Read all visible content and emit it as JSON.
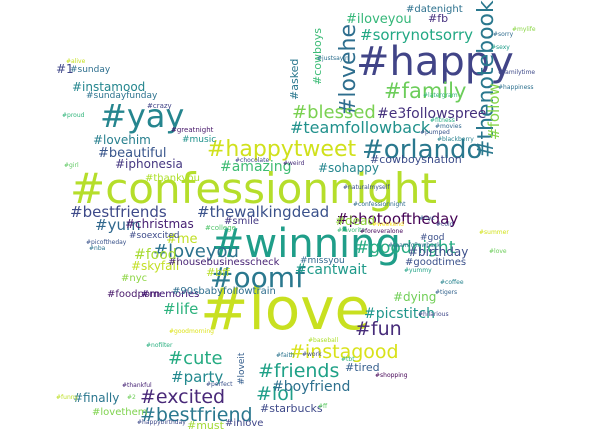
{
  "words": [
    {
      "text": "#confessionnight",
      "color": "#b5de2b"
    },
    {
      "text": "#winning",
      "color": "#1f9e89"
    },
    {
      "text": "#love",
      "color": "#c8e020"
    },
    {
      "text": "#happy",
      "color": "#414487"
    },
    {
      "text": "#oomf",
      "color": "#2a788e"
    },
    {
      "text": "#yay",
      "color": "#25858e"
    },
    {
      "text": "#orlando",
      "color": "#2a788e"
    },
    {
      "text": "#happytweet",
      "color": "#d0e11c"
    },
    {
      "text": "#family",
      "color": "#6ccd5a"
    },
    {
      "text": "#lovehe",
      "color": "#2e6e8e"
    },
    {
      "text": "#thenotebook",
      "color": "#2a788e"
    },
    {
      "text": "#blessed",
      "color": "#7ad151"
    },
    {
      "text": "#excited",
      "color": "#482878"
    },
    {
      "text": "#lol",
      "color": "#1f9e89"
    },
    {
      "text": "#friends",
      "color": "#1fa187"
    },
    {
      "text": "#bestfriend",
      "color": "#2a788e"
    },
    {
      "text": "#instagood",
      "color": "#d8e219"
    },
    {
      "text": "#fun",
      "color": "#472c7a"
    },
    {
      "text": "#cute",
      "color": "#25ab82"
    },
    {
      "text": "#loveyou",
      "color": "#2c728e"
    },
    {
      "text": "#goodnight",
      "color": "#25ab82"
    },
    {
      "text": "#teamfollowback",
      "color": "#21918c"
    },
    {
      "text": "#sorrynotsorry",
      "color": "#22a884"
    },
    {
      "text": "#bestfriends",
      "color": "#3e4a89"
    },
    {
      "text": "#thewalkingdead",
      "color": "#3b528b"
    },
    {
      "text": "#photooftheday",
      "color": "#440154"
    },
    {
      "text": "#amazing",
      "color": "#3fbc73"
    },
    {
      "text": "#iloveyou",
      "color": "#35b779"
    },
    {
      "text": "#e3followspree",
      "color": "#46327e"
    },
    {
      "text": "#follow",
      "color": "#86d549"
    },
    {
      "text": "#yum",
      "color": "#31688e"
    },
    {
      "text": "#party",
      "color": "#23898e"
    },
    {
      "text": "#cantwait",
      "color": "#1f9a8a"
    },
    {
      "text": "#picstitch",
      "color": "#1f968b"
    },
    {
      "text": "#food",
      "color": "#a8db34"
    },
    {
      "text": "#beautiful",
      "color": "#39568c"
    },
    {
      "text": "#life",
      "color": "#2db27d"
    },
    {
      "text": "#boyfriend",
      "color": "#2d708e"
    },
    {
      "text": "#lovehim",
      "color": "#277f8e"
    },
    {
      "text": "#instamood",
      "color": "#24868e"
    },
    {
      "text": "#christmas",
      "color": "#482173"
    },
    {
      "text": "#sohappy",
      "color": "#24868e"
    },
    {
      "text": "#cowboysnation",
      "color": "#3d4d8a"
    },
    {
      "text": "#finally",
      "color": "#2a768e"
    },
    {
      "text": "#birthday",
      "color": "#3c4f8a"
    },
    {
      "text": "#iphonesia",
      "color": "#453781"
    },
    {
      "text": "#me",
      "color": "#c0df25"
    },
    {
      "text": "#dead",
      "color": "#95d840"
    },
    {
      "text": "#skyfall",
      "color": "#c2df23"
    },
    {
      "text": "#dying",
      "color": "#71cf57"
    },
    {
      "text": "#starbucks",
      "color": "#3e4989"
    },
    {
      "text": "#tired",
      "color": "#355f8d"
    },
    {
      "text": "#fb",
      "color": "#46307e"
    },
    {
      "text": "#datenight",
      "color": "#2d718e"
    },
    {
      "text": "#asked",
      "color": "#2a788e"
    },
    {
      "text": "#cowboys",
      "color": "#3bbb75"
    },
    {
      "text": "#1",
      "color": "#3f4788"
    },
    {
      "text": "#sunday",
      "color": "#2e6f8e"
    },
    {
      "text": "#goodtimes",
      "color": "#3b518b"
    },
    {
      "text": "#smile",
      "color": "#443983"
    },
    {
      "text": "#memories",
      "color": "#3b0f70"
    },
    {
      "text": "#foodporn",
      "color": "#48186a"
    },
    {
      "text": "#bff",
      "color": "#b8de29"
    },
    {
      "text": "#nyc",
      "color": "#8ed645"
    },
    {
      "text": "#must",
      "color": "#a2da37"
    },
    {
      "text": "#inlove",
      "color": "#404688"
    },
    {
      "text": "#lovethem",
      "color": "#7fd34e"
    },
    {
      "text": "#thankyou",
      "color": "#ade028"
    },
    {
      "text": "#music",
      "color": "#20928c"
    },
    {
      "text": "#sundayfunday",
      "color": "#2c728e"
    },
    {
      "text": "#housebusinesscheck",
      "color": "#482475"
    },
    {
      "text": "#90sbabyfollowtrain",
      "color": "#2e6e8e"
    },
    {
      "text": "#missyou",
      "color": "#31688e"
    },
    {
      "text": "#god",
      "color": "#3c508b"
    },
    {
      "text": "#soexcited",
      "color": "#3e4c8a"
    },
    {
      "text": "#loveit",
      "color": "#355e8d"
    },
    {
      "text": "#crazy",
      "color": "#404387"
    },
    {
      "text": "#greatnight",
      "color": "#48196b"
    },
    {
      "text": "#college",
      "color": "#50c46a"
    },
    {
      "text": "#funny",
      "color": "#bddf26"
    },
    {
      "text": "#mylife",
      "color": "#8bd646"
    },
    {
      "text": "#sorry",
      "color": "#2f6c8e"
    },
    {
      "text": "#sexy",
      "color": "#1e9c89"
    },
    {
      "text": "#familytime",
      "color": "#3e4a89"
    },
    {
      "text": "#happiness",
      "color": "#2d708e"
    },
    {
      "text": "#confessionnight",
      "color": "#2f6b8e"
    },
    {
      "text": "#fitness",
      "color": "#26ad81"
    },
    {
      "text": "#movies",
      "color": "#31678e"
    },
    {
      "text": "#weird",
      "color": "#472d7b"
    },
    {
      "text": "#naturalmyself",
      "color": "#3b528b"
    },
    {
      "text": "#justsayin",
      "color": "#2e6f8e"
    },
    {
      "text": "#latergram",
      "color": "#32b67a"
    },
    {
      "text": "#proud",
      "color": "#31b57b"
    },
    {
      "text": "#girl",
      "color": "#5ec962"
    },
    {
      "text": "#love",
      "color": "#6ccd5a"
    },
    {
      "text": "#summer",
      "color": "#d2e21b"
    },
    {
      "text": "#favorite",
      "color": "#3dbc74"
    },
    {
      "text": "#chocolate",
      "color": "#414487"
    },
    {
      "text": "#perfect",
      "color": "#3b528b"
    },
    {
      "text": "#blackberry",
      "color": "#27808e"
    },
    {
      "text": "#pumped",
      "color": "#3a548c"
    },
    {
      "text": "#hilarious",
      "color": "#3f4889"
    },
    {
      "text": "#tigers",
      "color": "#33638d"
    },
    {
      "text": "#coffee",
      "color": "#25838e"
    },
    {
      "text": "#shopping",
      "color": "#440154"
    },
    {
      "text": "#thankful",
      "color": "#482576"
    },
    {
      "text": "#weekend",
      "color": "#fde725"
    },
    {
      "text": "#foreveralone",
      "color": "#46085c"
    },
    {
      "text": "#alive",
      "color": "#c5e021"
    },
    {
      "text": "#teamfollowback",
      "color": "#2e6f8e"
    },
    {
      "text": "#picoftheday",
      "color": "#3a538b"
    },
    {
      "text": "#nba",
      "color": "#2c738e"
    },
    {
      "text": "#yummy",
      "color": "#20a386"
    },
    {
      "text": "#happybirthday",
      "color": "#3e4a89"
    },
    {
      "text": "#nofilter",
      "color": "#29af7f"
    },
    {
      "text": "#baseball",
      "color": "#ade028"
    },
    {
      "text": "#goodmorning",
      "color": "#dde318"
    },
    {
      "text": "#faith",
      "color": "#2b748e"
    },
    {
      "text": "#work",
      "color": "#3f4889"
    },
    {
      "text": "#tbt",
      "color": "#31b57b"
    },
    {
      "text": "#ff",
      "color": "#5cc863"
    },
    {
      "text": "#2",
      "color": "#6ece58"
    },
    {
      "text": "#cold",
      "color": "#3f4788"
    },
    {
      "text": "#nyc",
      "color": "#365c8d"
    }
  ]
}
